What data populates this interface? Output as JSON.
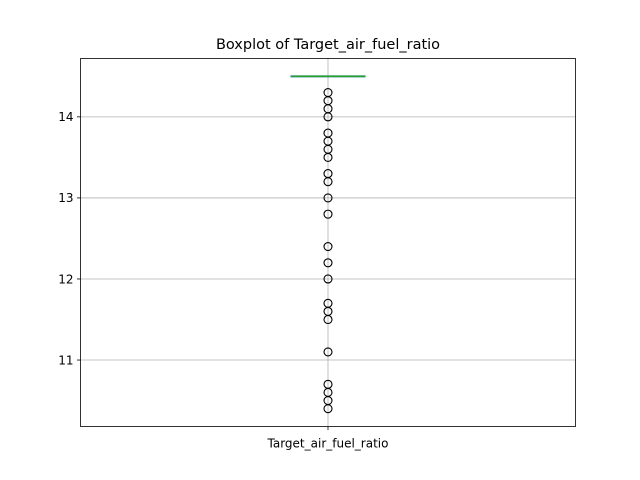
{
  "chart_data": {
    "type": "box",
    "title": "Boxplot of Target_air_fuel_ratio",
    "xlabel": "",
    "ylabel": "",
    "categories": [
      "Target_air_fuel_ratio"
    ],
    "ylim": [
      10.18,
      14.72
    ],
    "yticks": [
      11,
      12,
      13,
      14
    ],
    "grid": true,
    "series": [
      {
        "name": "Target_air_fuel_ratio",
        "q1": 14.5,
        "median": 14.5,
        "q3": 14.5,
        "whisker_low": 14.5,
        "whisker_high": 14.5,
        "outliers": [
          14.3,
          14.2,
          14.1,
          14.0,
          13.8,
          13.7,
          13.6,
          13.5,
          13.3,
          13.2,
          13.0,
          12.8,
          12.4,
          12.2,
          12.0,
          11.7,
          11.6,
          11.5,
          11.1,
          10.7,
          10.6,
          10.5,
          10.4
        ]
      }
    ],
    "colors": {
      "box": "#1f77b4",
      "median": "#2ca02c",
      "whisker": "#1f77b4",
      "outlier": "#000000",
      "grid": "#b0b0b0"
    }
  }
}
